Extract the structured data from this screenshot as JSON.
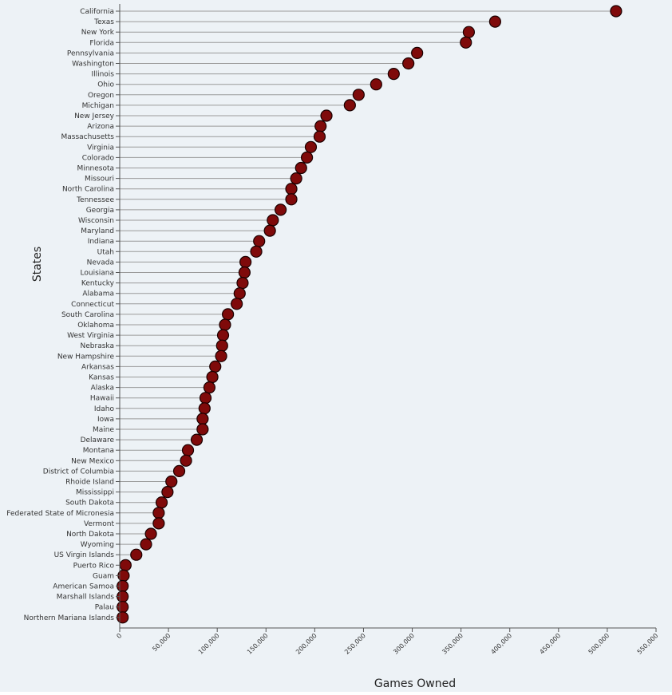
{
  "chart_data": {
    "type": "lollipop",
    "xlabel": "Games Owned",
    "ylabel": "States",
    "xlim": [
      0,
      550000
    ],
    "xticks": [
      0,
      50000,
      100000,
      150000,
      200000,
      250000,
      300000,
      350000,
      400000,
      450000,
      500000,
      550000
    ],
    "xtick_labels": [
      "0",
      "50,000",
      "100,000",
      "150,000",
      "200,000",
      "250,000",
      "300,000",
      "350,000",
      "400,000",
      "450,000",
      "500,000",
      "550,000"
    ],
    "grid": false,
    "marker_color": "#7f0a0a",
    "stem_color": "#9a9a9a",
    "background_color": "#edf2f6",
    "categories": [
      "California",
      "Texas",
      "New York",
      "Florida",
      "Pennsylvania",
      "Washington",
      "Illinois",
      "Ohio",
      "Oregon",
      "Michigan",
      "New Jersey",
      "Arizona",
      "Massachusetts",
      "Virginia",
      "Colorado",
      "Minnesota",
      "Missouri",
      "North Carolina",
      "Tennessee",
      "Georgia",
      "Wisconsin",
      "Maryland",
      "Indiana",
      "Utah",
      "Nevada",
      "Louisiana",
      "Kentucky",
      "Alabama",
      "Connecticut",
      "South Carolina",
      "Oklahoma",
      "West Virginia",
      "Nebraska",
      "New Hampshire",
      "Arkansas",
      "Kansas",
      "Alaska",
      "Hawaii",
      "Idaho",
      "Iowa",
      "Maine",
      "Delaware",
      "Montana",
      "New Mexico",
      "District of Columbia",
      "Rhoide Island",
      "Mississippi",
      "South Dakota",
      "Federated State of Micronesia",
      "Vermont",
      "North Dakota",
      "Wyoming",
      "US Virgin Islands",
      "Puerto Rico",
      "Guam",
      "American Samoa",
      "Marshall Islands",
      "Palau",
      "Northern Mariana Islands"
    ],
    "values": [
      509000,
      385000,
      358000,
      355000,
      305000,
      296000,
      281000,
      263000,
      245000,
      236000,
      212000,
      206000,
      205000,
      196000,
      192000,
      186000,
      181000,
      176000,
      176000,
      165000,
      157000,
      154000,
      143000,
      140000,
      129000,
      128000,
      126000,
      123000,
      120000,
      111000,
      108000,
      106000,
      105000,
      104000,
      98000,
      95000,
      92000,
      88000,
      87000,
      85000,
      85000,
      79000,
      70000,
      68000,
      61000,
      53000,
      49000,
      43000,
      40000,
      40000,
      32000,
      27000,
      17000,
      6000,
      4000,
      3000,
      3000,
      3000,
      3000
    ]
  }
}
